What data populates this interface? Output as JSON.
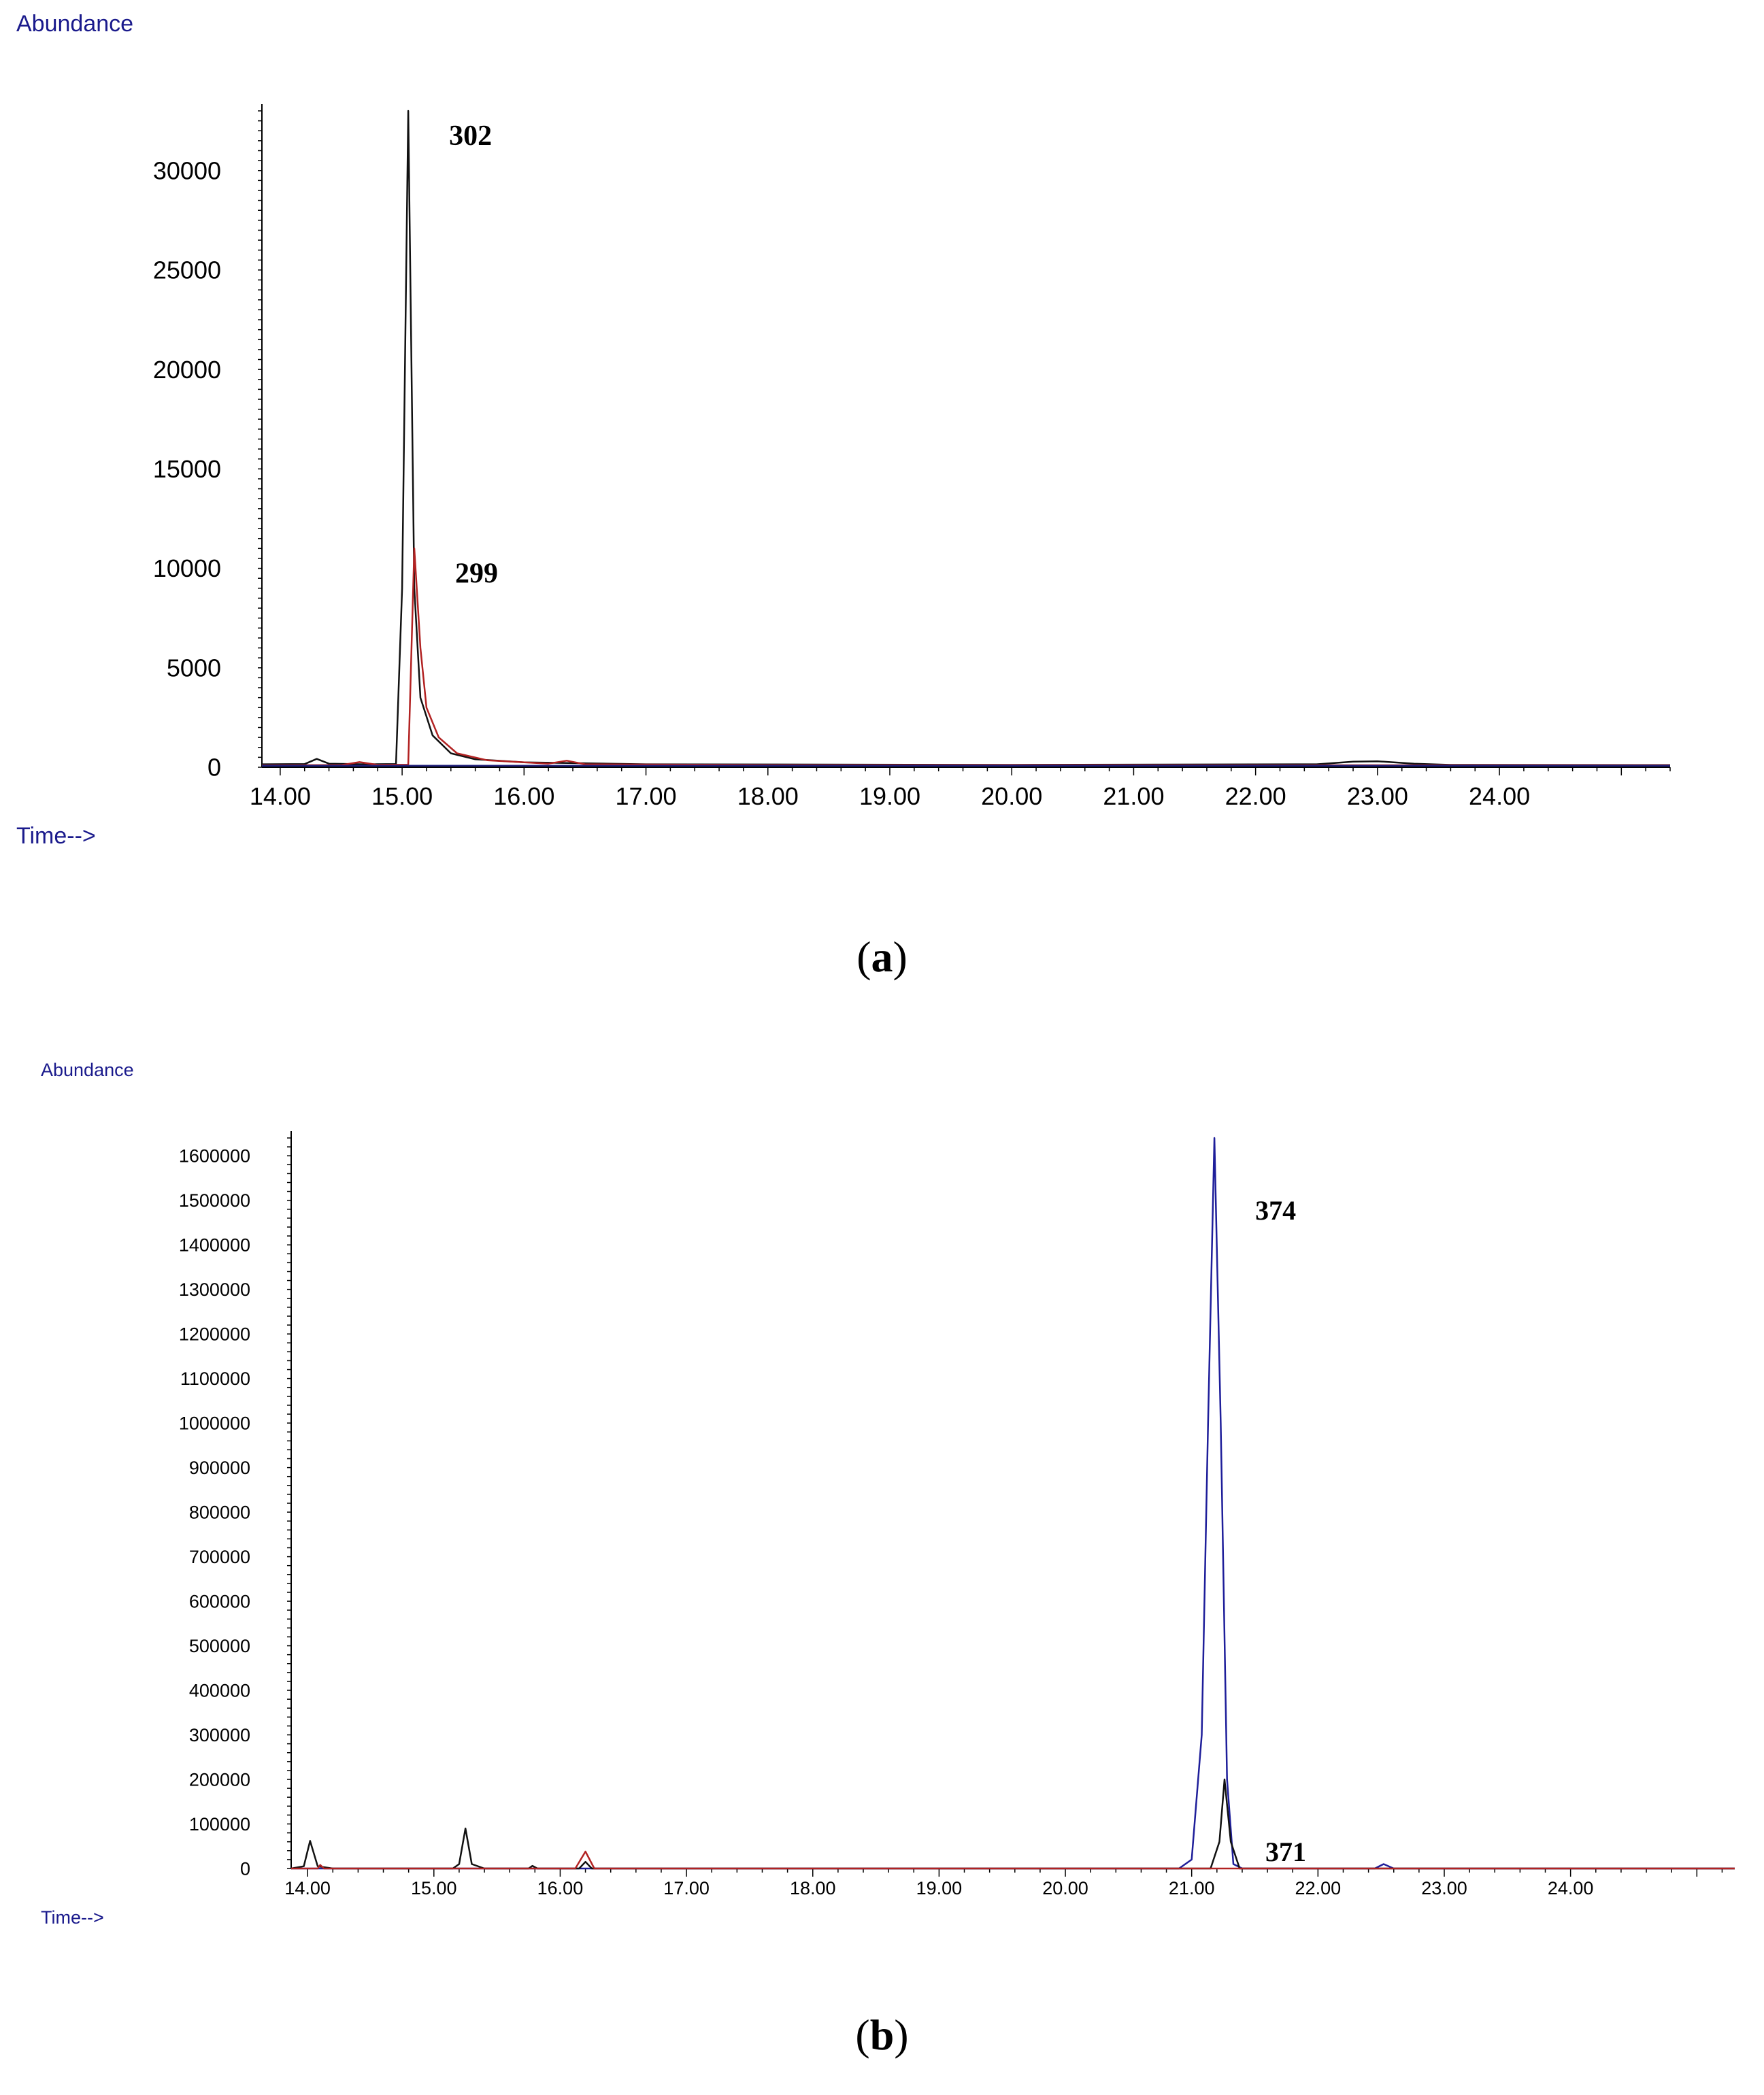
{
  "chart_data": [
    {
      "type": "line",
      "panel_label": "a",
      "ylabel": "Abundance",
      "xlabel": "Time-->",
      "xlim": [
        13.85,
        25.4
      ],
      "ylim": [
        0,
        33000
      ],
      "x_ticks": [
        "14.00",
        "15.00",
        "16.00",
        "17.00",
        "18.00",
        "19.00",
        "20.00",
        "21.00",
        "22.00",
        "23.00",
        "24.00"
      ],
      "y_ticks": [
        "0",
        "5000",
        "10000",
        "15000",
        "20000",
        "25000",
        "30000"
      ],
      "colors": {
        "axis": "#000000",
        "label": "#1a1a8c"
      },
      "series": [
        {
          "color": "#111111",
          "points": [
            [
              13.85,
              150
            ],
            [
              14.2,
              160
            ],
            [
              14.3,
              420
            ],
            [
              14.4,
              180
            ],
            [
              14.7,
              150
            ],
            [
              14.95,
              160
            ],
            [
              15.0,
              9000
            ],
            [
              15.05,
              33000
            ],
            [
              15.1,
              9000
            ],
            [
              15.15,
              3500
            ],
            [
              15.25,
              1600
            ],
            [
              15.4,
              700
            ],
            [
              15.6,
              400
            ],
            [
              16.0,
              250
            ],
            [
              17.0,
              150
            ],
            [
              20.0,
              120
            ],
            [
              22.5,
              150
            ],
            [
              22.8,
              280
            ],
            [
              23.0,
              300
            ],
            [
              23.3,
              180
            ],
            [
              23.6,
              120
            ],
            [
              25.4,
              110
            ]
          ]
        },
        {
          "color": "#b22222",
          "points": [
            [
              13.85,
              100
            ],
            [
              14.5,
              110
            ],
            [
              14.65,
              260
            ],
            [
              14.8,
              120
            ],
            [
              15.05,
              130
            ],
            [
              15.1,
              11000
            ],
            [
              15.15,
              6000
            ],
            [
              15.2,
              3000
            ],
            [
              15.3,
              1500
            ],
            [
              15.45,
              700
            ],
            [
              15.7,
              350
            ],
            [
              16.2,
              180
            ],
            [
              16.35,
              330
            ],
            [
              16.5,
              150
            ],
            [
              18.0,
              110
            ],
            [
              25.4,
              100
            ]
          ]
        },
        {
          "color": "#1e1e7a",
          "points": [
            [
              13.85,
              80
            ],
            [
              25.4,
              80
            ]
          ]
        }
      ],
      "annotations": [
        {
          "text": "302",
          "x": 15.05,
          "y": 33000
        },
        {
          "text": "299",
          "x": 15.1,
          "y": 11000
        }
      ]
    },
    {
      "type": "line",
      "panel_label": "b",
      "ylabel": "Abundance",
      "xlabel": "Time-->",
      "xlim": [
        13.87,
        25.3
      ],
      "ylim": [
        0,
        1640000
      ],
      "x_ticks": [
        "14.00",
        "15.00",
        "16.00",
        "17.00",
        "18.00",
        "19.00",
        "20.00",
        "21.00",
        "22.00",
        "23.00",
        "24.00"
      ],
      "y_ticks": [
        "0",
        "100000",
        "200000",
        "300000",
        "400000",
        "500000",
        "600000",
        "700000",
        "800000",
        "900000",
        "1000000",
        "1100000",
        "1200000",
        "1300000",
        "1400000",
        "1500000",
        "1600000"
      ],
      "colors": {
        "axis": "#000000",
        "label": "#1a1a8c"
      },
      "series": [
        {
          "color": "#1e1e9a",
          "points": [
            [
              13.87,
              0
            ],
            [
              20.9,
              0
            ],
            [
              21.0,
              20000
            ],
            [
              21.08,
              300000
            ],
            [
              21.13,
              1000000
            ],
            [
              21.18,
              1640000
            ],
            [
              21.23,
              1000000
            ],
            [
              21.28,
              200000
            ],
            [
              21.33,
              10000
            ],
            [
              21.4,
              0
            ],
            [
              22.45,
              0
            ],
            [
              22.52,
              10000
            ],
            [
              22.6,
              0
            ],
            [
              25.3,
              0
            ]
          ]
        },
        {
          "color": "#111111",
          "points": [
            [
              13.87,
              0
            ],
            [
              13.97,
              5000
            ],
            [
              14.02,
              62000
            ],
            [
              14.08,
              5000
            ],
            [
              14.2,
              0
            ],
            [
              15.15,
              0
            ],
            [
              15.2,
              10000
            ],
            [
              15.25,
              90000
            ],
            [
              15.3,
              10000
            ],
            [
              15.4,
              0
            ],
            [
              15.75,
              0
            ],
            [
              15.78,
              6000
            ],
            [
              15.82,
              0
            ],
            [
              16.15,
              0
            ],
            [
              16.2,
              15000
            ],
            [
              16.25,
              0
            ],
            [
              21.15,
              0
            ],
            [
              21.22,
              60000
            ],
            [
              21.26,
              200000
            ],
            [
              21.31,
              60000
            ],
            [
              21.38,
              0
            ],
            [
              25.3,
              0
            ]
          ]
        },
        {
          "color": "#b22222",
          "points": [
            [
              13.87,
              0
            ],
            [
              14.08,
              0
            ],
            [
              14.1,
              8000
            ],
            [
              14.13,
              0
            ],
            [
              16.12,
              0
            ],
            [
              16.2,
              38000
            ],
            [
              16.27,
              0
            ],
            [
              25.3,
              0
            ]
          ]
        }
      ],
      "annotations": [
        {
          "text": "374",
          "x": 21.18,
          "y": 1640000
        },
        {
          "text": "371",
          "x": 21.26,
          "y": 200000
        }
      ]
    }
  ]
}
